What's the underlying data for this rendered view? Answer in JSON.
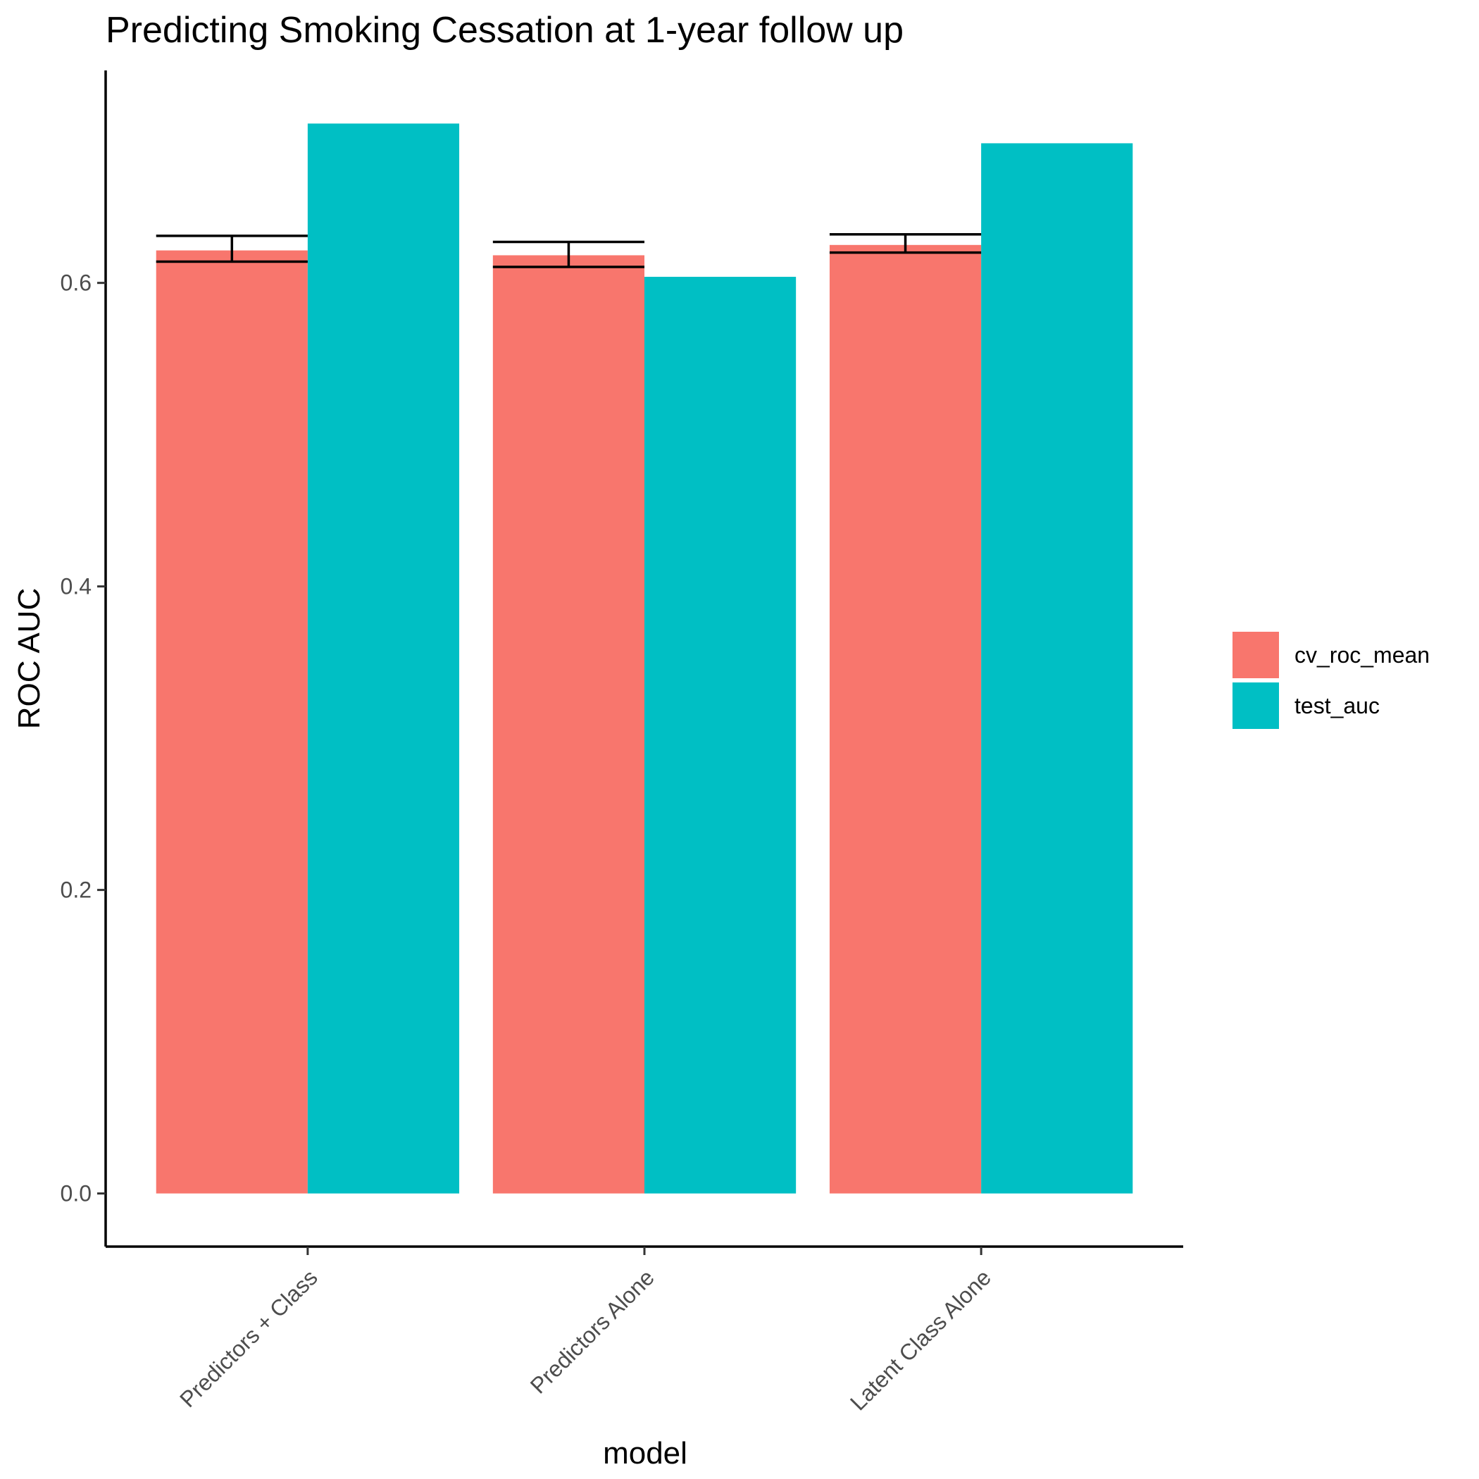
{
  "chart_data": {
    "type": "bar",
    "title": "Predicting Smoking Cessation at 1-year follow up",
    "xlabel": "model",
    "ylabel": "ROC AUC",
    "categories": [
      "Predictors + Class",
      "Predictors Alone",
      "Latent Class Alone"
    ],
    "series": [
      {
        "name": "cv_roc_mean",
        "color": "#F8766D",
        "values": [
          0.6214,
          0.6182,
          0.625
        ],
        "error_low": [
          0.614,
          0.6105,
          0.62
        ],
        "error_high": [
          0.631,
          0.627,
          0.632
        ]
      },
      {
        "name": "test_auc",
        "color": "#00BFC4",
        "values": [
          0.705,
          0.604,
          0.692
        ]
      }
    ],
    "yticks": [
      0.0,
      0.2,
      0.4,
      0.6
    ],
    "ytick_labels": [
      "0.0",
      "0.2",
      "0.4",
      "0.6"
    ],
    "ylim": [
      -0.035,
      0.74
    ],
    "grid": false,
    "legend_position": "right"
  }
}
